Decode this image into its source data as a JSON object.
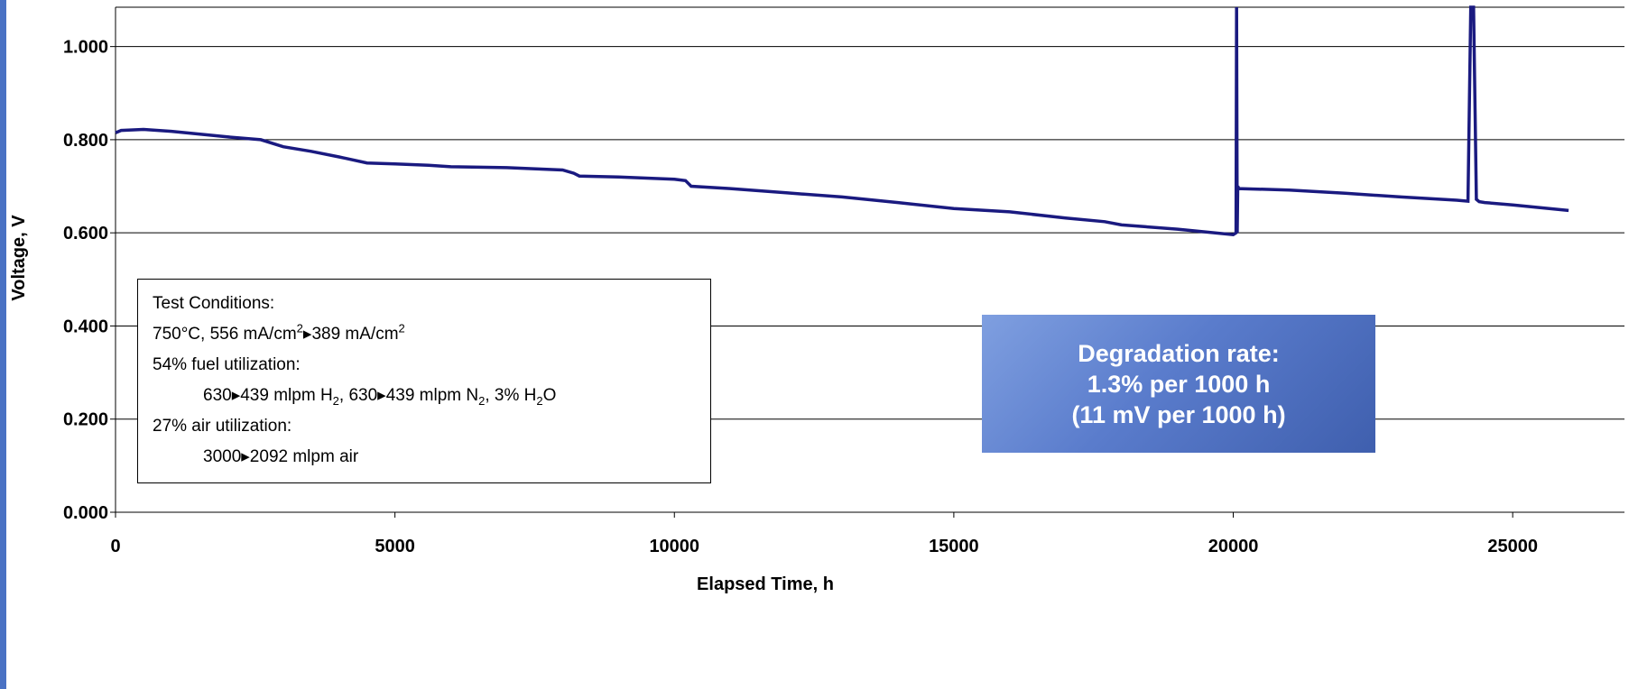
{
  "chart_data": {
    "type": "line",
    "title": "",
    "xlabel": "Elapsed Time, h",
    "ylabel": "Voltage, V",
    "xlim": [
      0,
      27000
    ],
    "ylim": [
      0,
      1.1
    ],
    "x_ticks": [
      "0",
      "5000",
      "10000",
      "15000",
      "20000",
      "25000"
    ],
    "y_ticks": [
      "0.000",
      "0.200",
      "0.400",
      "0.600",
      "0.800",
      "1.000"
    ],
    "grid": "horizontal",
    "line_color": "#1a1a80",
    "series": [
      {
        "x": [
          0,
          100,
          500,
          1000,
          2000,
          2600,
          3000,
          3500,
          4000,
          4500,
          5000,
          5600,
          6000,
          7000,
          8000,
          8200,
          8300,
          9000,
          10000,
          10200,
          10300,
          11000,
          12000,
          13000,
          14000,
          15000,
          16000,
          17000,
          17700,
          18000,
          19000,
          20000,
          20050,
          20060,
          20070,
          20080,
          20100,
          21000,
          22000,
          23000,
          24000,
          24200,
          24250,
          24300,
          24350,
          24400,
          24500,
          25000,
          26000
        ],
        "y": [
          0.815,
          0.82,
          0.822,
          0.818,
          0.806,
          0.8,
          0.785,
          0.775,
          0.763,
          0.75,
          0.748,
          0.745,
          0.742,
          0.74,
          0.735,
          0.728,
          0.722,
          0.72,
          0.715,
          0.712,
          0.7,
          0.695,
          0.686,
          0.677,
          0.665,
          0.652,
          0.645,
          0.632,
          0.624,
          0.617,
          0.608,
          0.596,
          0.6,
          1.1,
          0.6,
          0.7,
          0.695,
          0.692,
          0.685,
          0.677,
          0.67,
          0.668,
          1.09,
          1.09,
          0.672,
          0.667,
          0.665,
          0.66,
          0.648
        ]
      }
    ]
  },
  "conditions": {
    "title": "Test Conditions:",
    "line1_a": "750°C, 556 mA/cm",
    "line1_sup": "2",
    "line1_b": "▸389 mA/cm",
    "line1_sup2": "2",
    "fuel_title": "54% fuel utilization:",
    "fuel_a": "630▸439 mlpm H",
    "fuel_sub1": "2",
    "fuel_b": ", 630▸439 mlpm N",
    "fuel_sub2": "2",
    "fuel_c": ", 3% H",
    "fuel_sub3": "2",
    "fuel_d": "O",
    "air_title": "27% air utilization:",
    "air_line": "3000▸2092 mlpm air"
  },
  "degradation": {
    "line1": "Degradation rate:",
    "line2": "1.3% per 1000 h",
    "line3": "(11 mV per 1000 h)"
  }
}
